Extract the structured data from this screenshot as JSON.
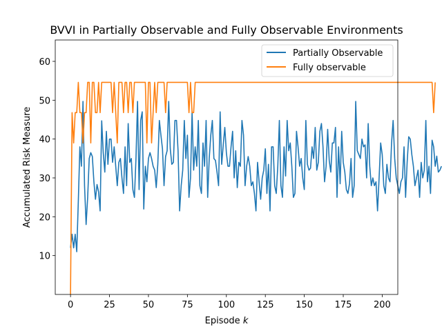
{
  "chart_data": {
    "type": "line",
    "title": "BVVI in Partially Observable and Fully Observable Environments",
    "xlabel": "Episode",
    "xlabel_var": "k",
    "ylabel": "Accumulated Risk Measure",
    "xlim": [
      -9.8,
      210
    ],
    "ylim": [
      0,
      65.5
    ],
    "xticks": [
      0,
      25,
      50,
      75,
      100,
      125,
      150,
      175,
      200
    ],
    "yticks": [
      10,
      20,
      30,
      40,
      50,
      60
    ],
    "grid": false,
    "legend_position": "top-right",
    "series": [
      {
        "name": "Partially Observable",
        "color": "#1f77b4",
        "values": [
          12,
          15.5,
          12,
          15.5,
          11,
          24,
          38,
          33,
          49.7,
          28,
          18,
          25,
          35,
          36.5,
          35.5,
          29,
          24.5,
          28.3,
          26.4,
          21.5,
          44.7,
          36.5,
          31.5,
          42,
          33.5,
          40,
          40,
          34,
          38,
          33,
          28,
          34,
          35,
          30,
          26,
          38,
          28,
          44,
          34,
          35,
          27,
          25,
          35,
          49.7,
          27,
          44.8,
          47,
          22,
          33,
          29,
          35,
          36.5,
          35,
          33,
          32,
          27.5,
          33.5,
          44.8,
          41,
          37.5,
          28,
          35.5,
          37,
          49.7,
          37.5,
          33.5,
          34,
          44.8,
          44.8,
          37,
          21.5,
          28,
          32,
          44.8,
          35,
          41,
          25,
          30,
          47,
          32,
          38,
          33,
          44.8,
          28,
          26,
          39,
          33,
          44.8,
          25,
          35,
          41,
          44.8,
          35,
          34.5,
          31.5,
          28,
          47,
          33.5,
          38.5,
          43,
          36.5,
          33,
          33,
          38,
          42,
          30,
          37,
          27.5,
          34,
          33,
          44.8,
          41,
          28,
          33,
          35.5,
          33,
          28,
          29,
          26,
          21.5,
          34,
          29,
          24.5,
          30,
          32,
          37.5,
          26,
          33.5,
          21.5,
          38,
          38,
          28,
          26,
          33,
          44.8,
          28,
          25,
          38,
          30.5,
          44.8,
          37,
          39,
          33,
          25,
          26,
          42,
          38,
          33,
          35,
          30,
          27,
          44.8,
          33.5,
          32,
          32.5,
          38,
          35,
          43,
          32,
          34,
          42,
          44,
          38,
          29,
          33,
          42.5,
          34.5,
          31.5,
          39,
          39,
          43,
          25,
          38,
          28.5,
          42,
          34,
          31.5,
          27,
          26,
          28.5,
          35,
          25,
          28,
          49.7,
          37,
          36,
          35,
          40,
          38,
          38.5,
          30,
          44,
          33,
          28,
          30,
          28,
          29,
          21.5,
          30,
          39,
          36,
          28,
          26,
          33.5,
          30,
          29,
          39,
          44.8,
          35,
          30,
          28,
          26,
          29,
          30,
          38,
          25,
          34,
          40.6,
          40,
          36,
          33,
          28,
          30,
          32,
          25,
          34,
          30,
          32,
          44.8,
          29,
          33,
          26,
          39.7,
          38,
          33,
          35.6,
          31.5,
          32,
          33
        ]
      },
      {
        "name": "Fully observable",
        "color": "#ff7f0e",
        "values": [
          0,
          46.8,
          39,
          46.8,
          46.8,
          54.6,
          46.8,
          46.8,
          39,
          46.8,
          46.8,
          54.6,
          54.6,
          39,
          54.6,
          54.6,
          46.8,
          46.8,
          54.6,
          46.8,
          54.6,
          54.6,
          54.6,
          54.6,
          54.6,
          54.6,
          54.6,
          46.8,
          54.6,
          46.8,
          39,
          54.6,
          54.6,
          54.6,
          46.8,
          54.6,
          54.6,
          46.8,
          54.6,
          54.6,
          46.8,
          54.6,
          54.6,
          54.6,
          54.6,
          54.6,
          54.6,
          54.6,
          54.6,
          39,
          54.6,
          54.6,
          39,
          46.8,
          54.6,
          46.8,
          54.6,
          54.6,
          54.6,
          54.6,
          54.6,
          46.8,
          54.6,
          54.6,
          54.6,
          54.6,
          54.6,
          54.6,
          54.6,
          54.6,
          54.6,
          54.6,
          54.6,
          54.6,
          54.6,
          54.6,
          46.8,
          54.6,
          46.8,
          46.8,
          54.6,
          54.6,
          54.6,
          54.6,
          54.6,
          54.6,
          54.6,
          54.6,
          54.6,
          54.6,
          54.6,
          54.6,
          54.6,
          54.6,
          54.6,
          54.6,
          54.6,
          54.6,
          54.6,
          54.6,
          54.6,
          54.6,
          54.6,
          54.6,
          54.6,
          54.6,
          54.6,
          54.6,
          54.6,
          54.6,
          54.6,
          54.6,
          54.6,
          54.6,
          54.6,
          54.6,
          54.6,
          54.6,
          54.6,
          54.6,
          54.6,
          54.6,
          54.6,
          54.6,
          54.6,
          54.6,
          54.6,
          54.6,
          54.6,
          54.6,
          54.6,
          54.6,
          54.6,
          54.6,
          54.6,
          54.6,
          54.6,
          54.6,
          54.6,
          54.6,
          54.6,
          54.6,
          54.6,
          54.6,
          54.6,
          54.6,
          54.6,
          54.6,
          54.6,
          54.6,
          54.6,
          54.6,
          54.6,
          54.6,
          54.6,
          54.6,
          54.6,
          54.6,
          54.6,
          54.6,
          54.6,
          54.6,
          54.6,
          54.6,
          54.6,
          54.6,
          54.6,
          54.6,
          54.6,
          54.6,
          54.6,
          54.6,
          54.6,
          54.6,
          54.6,
          54.6,
          54.6,
          54.6,
          54.6,
          54.6,
          54.6,
          54.6,
          54.6,
          54.6,
          54.6,
          54.6,
          54.6,
          54.6,
          54.6,
          54.6,
          54.6,
          54.6,
          54.6,
          54.6,
          54.6,
          54.6,
          54.6,
          54.6,
          54.6,
          54.6,
          54.6,
          54.6,
          54.6,
          54.6,
          54.6,
          54.6,
          54.6,
          54.6,
          54.6,
          54.6,
          54.6,
          54.6,
          54.6,
          54.6,
          54.6,
          54.6,
          54.6,
          54.6,
          54.6,
          54.6,
          54.6,
          54.6,
          54.6,
          54.6,
          54.6,
          54.6,
          54.6,
          54.6,
          54.6,
          54.6,
          54.6,
          54.6,
          54.6,
          46.8,
          54.6
        ]
      }
    ]
  }
}
